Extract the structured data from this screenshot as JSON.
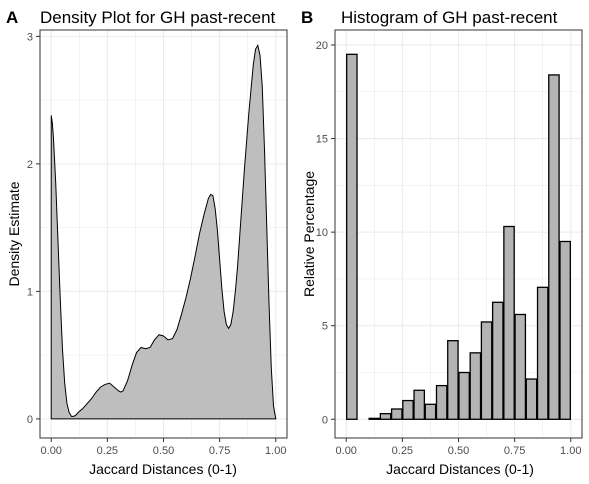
{
  "chart_data": [
    {
      "type": "area",
      "panel_label": "A",
      "title": "Density Plot for GH past-recent",
      "xlabel": "Jaccard Distances (0-1)",
      "ylabel": "Density Estimate",
      "xlim": [
        -0.05,
        1.05
      ],
      "ylim": [
        -0.15,
        3.05
      ],
      "x_ticks": [
        0.0,
        0.25,
        0.5,
        0.75,
        1.0
      ],
      "x_tick_labels": [
        "0.00",
        "0.25",
        "0.50",
        "0.75",
        "1.00"
      ],
      "y_ticks": [
        0,
        1,
        2,
        3
      ],
      "y_tick_labels": [
        "0",
        "1",
        "2",
        "3"
      ],
      "grid": true,
      "colors": {
        "fill": "#bebebe",
        "line": "#000000",
        "grid": "#ebebeb",
        "border": "#333333"
      },
      "x": [
        0.0,
        0.005,
        0.01,
        0.02,
        0.03,
        0.04,
        0.05,
        0.06,
        0.07,
        0.08,
        0.09,
        0.1,
        0.11,
        0.12,
        0.14,
        0.16,
        0.18,
        0.2,
        0.22,
        0.24,
        0.26,
        0.28,
        0.3,
        0.31,
        0.32,
        0.34,
        0.36,
        0.38,
        0.4,
        0.42,
        0.44,
        0.46,
        0.48,
        0.5,
        0.52,
        0.54,
        0.56,
        0.58,
        0.6,
        0.62,
        0.64,
        0.66,
        0.68,
        0.7,
        0.71,
        0.72,
        0.73,
        0.74,
        0.75,
        0.76,
        0.77,
        0.78,
        0.79,
        0.8,
        0.81,
        0.82,
        0.83,
        0.84,
        0.86,
        0.88,
        0.9,
        0.91,
        0.92,
        0.93,
        0.94,
        0.95,
        0.96,
        0.97,
        0.98,
        0.99,
        1.0
      ],
      "y": [
        2.38,
        2.32,
        2.2,
        1.85,
        1.4,
        0.95,
        0.55,
        0.28,
        0.12,
        0.05,
        0.02,
        0.02,
        0.03,
        0.05,
        0.08,
        0.12,
        0.16,
        0.21,
        0.25,
        0.27,
        0.28,
        0.25,
        0.22,
        0.21,
        0.22,
        0.3,
        0.42,
        0.52,
        0.56,
        0.55,
        0.56,
        0.62,
        0.66,
        0.65,
        0.62,
        0.63,
        0.7,
        0.82,
        0.95,
        1.1,
        1.27,
        1.45,
        1.6,
        1.73,
        1.76,
        1.75,
        1.65,
        1.48,
        1.25,
        1.02,
        0.84,
        0.74,
        0.71,
        0.74,
        0.84,
        1.0,
        1.2,
        1.45,
        1.95,
        2.4,
        2.78,
        2.9,
        2.93,
        2.85,
        2.6,
        2.1,
        1.5,
        0.9,
        0.4,
        0.1,
        0.0
      ]
    },
    {
      "type": "bar",
      "panel_label": "B",
      "title": "Histogram of GH past-recent",
      "xlabel": "Jaccard Distances (0-1)",
      "ylabel": "Relative Percentage",
      "xlim": [
        -0.05,
        1.05
      ],
      "ylim": [
        -1,
        20.8
      ],
      "x_ticks": [
        0.0,
        0.25,
        0.5,
        0.75,
        1.0
      ],
      "x_tick_labels": [
        "0.00",
        "0.25",
        "0.50",
        "0.75",
        "1.00"
      ],
      "y_ticks": [
        0,
        5,
        10,
        15,
        20
      ],
      "y_tick_labels": [
        "0",
        "5",
        "10",
        "15",
        "20"
      ],
      "grid": true,
      "bar_width": 0.046,
      "colors": {
        "fill": "#b4b4b4",
        "line": "#000000",
        "grid": "#ebebeb",
        "border": "#333333"
      },
      "x": [
        0.025,
        0.075,
        0.125,
        0.175,
        0.225,
        0.275,
        0.325,
        0.375,
        0.425,
        0.475,
        0.525,
        0.575,
        0.625,
        0.675,
        0.725,
        0.775,
        0.825,
        0.875,
        0.925,
        0.975
      ],
      "values": [
        19.5,
        0.0,
        0.05,
        0.3,
        0.55,
        1.0,
        1.55,
        0.8,
        1.8,
        4.2,
        2.5,
        3.55,
        5.2,
        6.25,
        10.3,
        5.6,
        2.15,
        7.05,
        18.4,
        9.5
      ]
    }
  ]
}
